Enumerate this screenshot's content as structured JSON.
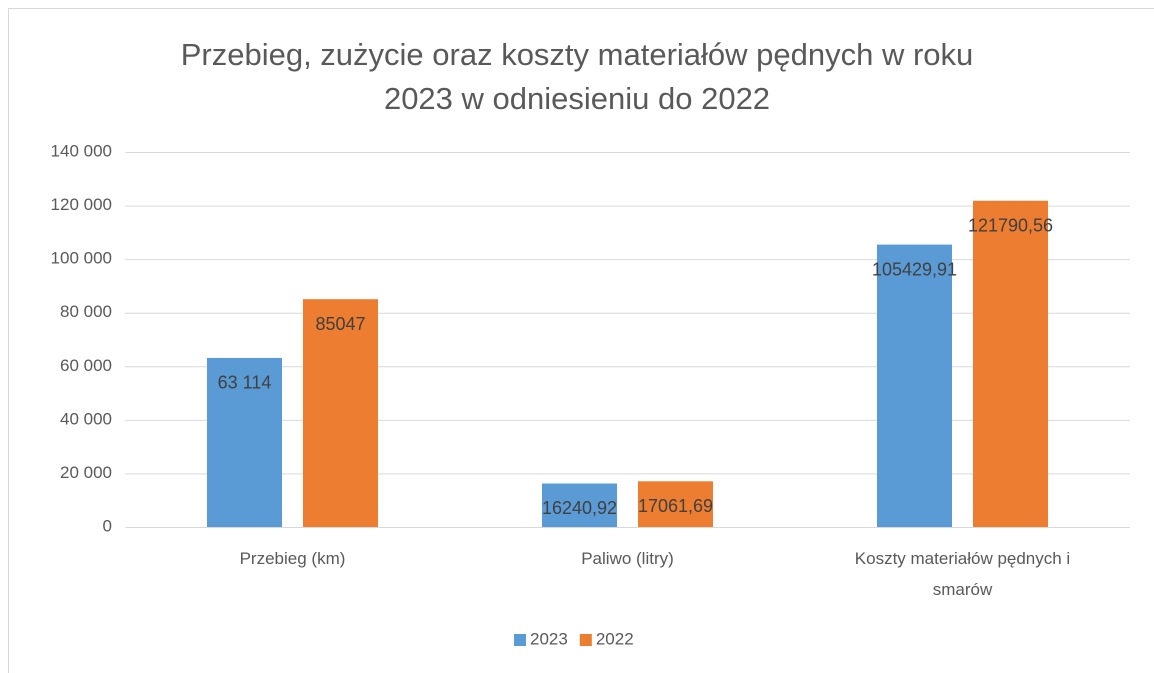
{
  "chart_data": {
    "type": "bar",
    "title": "Przebieg, zużycie oraz koszty materiałów pędnych w roku 2023 w odniesieniu do 2022",
    "categories": [
      "Przebieg (km)",
      "Paliwo (litry)",
      "Koszty materiałów pędnych i smarów"
    ],
    "series": [
      {
        "name": "2023",
        "color": "#5b9bd5",
        "values": [
          63114,
          16240.92,
          105429.91
        ],
        "value_labels": [
          "63 114",
          "16240,92",
          "105429,91"
        ]
      },
      {
        "name": "2022",
        "color": "#ed7d31",
        "values": [
          85047,
          17061.69,
          121790.56
        ],
        "value_labels": [
          "85047",
          "17061,69",
          "121790,56"
        ]
      }
    ],
    "ylim": [
      0,
      140000
    ],
    "yticks": [
      0,
      {
        "value": 20000,
        "label": "20 000"
      },
      {
        "value": 40000,
        "label": "40 000"
      },
      {
        "value": 60000,
        "label": "60 000"
      },
      {
        "value": 80000,
        "label": "80 000"
      },
      {
        "value": 100000,
        "label": "100 000"
      },
      {
        "value": 120000,
        "label": "120 000"
      },
      {
        "value": 140000,
        "label": "140 000"
      }
    ],
    "grid": true,
    "legend": "bottom"
  }
}
